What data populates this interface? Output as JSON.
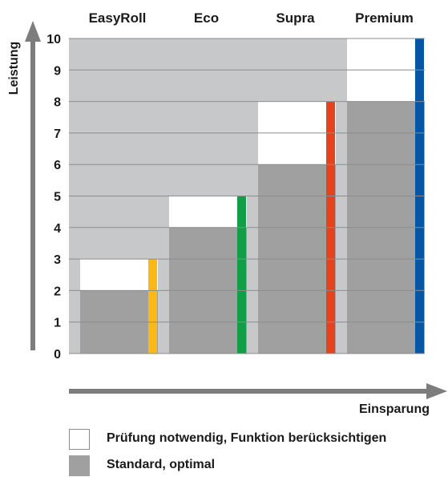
{
  "chart_data": {
    "type": "bar",
    "ylabel": "Leistung",
    "xlabel": "Einsparung",
    "ylim": [
      0,
      10
    ],
    "yticks": [
      0,
      1,
      2,
      3,
      4,
      5,
      6,
      7,
      8,
      9,
      10
    ],
    "grid": true,
    "categories": [
      "EasyRoll",
      "Eco",
      "Supra",
      "Premium"
    ],
    "series": [
      {
        "name": "Standard, optimal",
        "values": [
          2,
          4,
          6,
          8
        ]
      },
      {
        "name": "Prüfung notwendig, Funktion berücksichtigen",
        "values": [
          1,
          1,
          2,
          2
        ]
      }
    ],
    "max_values": [
      3,
      5,
      8,
      10
    ],
    "indicator_colors": [
      "#fbb913",
      "#109f44",
      "#e4431b",
      "#0756a4"
    ],
    "colors": {
      "background_band": "#c7c8ca",
      "standard": "#a0a0a1",
      "check": "#ffffff",
      "axis": "#7d7d7d",
      "grid": "#8c8c8c"
    }
  },
  "legend": {
    "items": [
      {
        "label": "Prüfung notwendig, Funktion berücksichtigen",
        "swatch": "white"
      },
      {
        "label": "Standard, optimal",
        "swatch": "grey"
      }
    ]
  }
}
